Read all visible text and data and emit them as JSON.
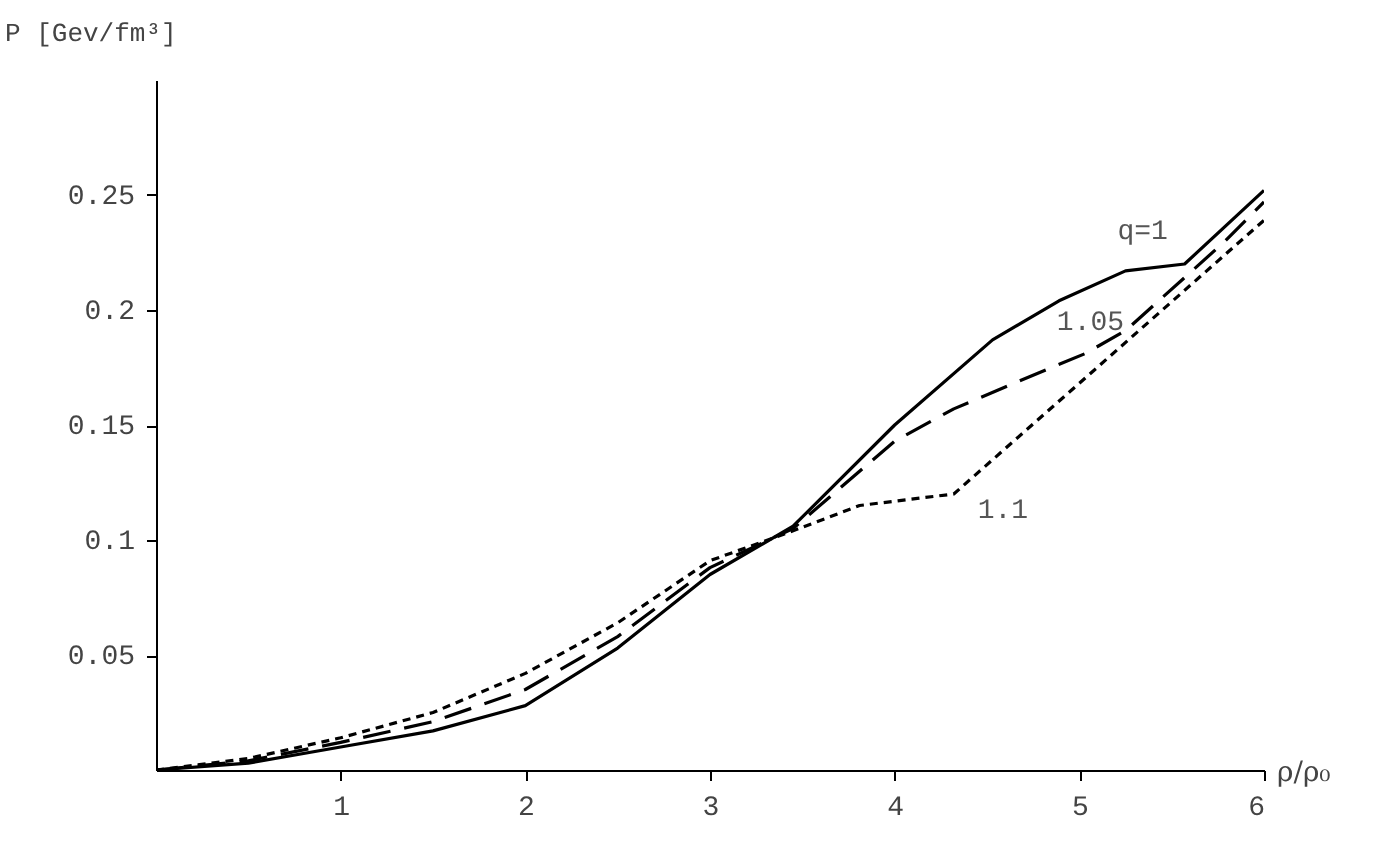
{
  "chart_data": {
    "type": "line",
    "xlabel": "ρ/ρ₀",
    "ylabel": "P [Gev/fm³]",
    "xlim": [
      0,
      6
    ],
    "ylim": [
      0,
      0.3
    ],
    "xticks": [
      1,
      2,
      3,
      4,
      5,
      6
    ],
    "yticks": [
      0.05,
      0.1,
      0.15,
      0.2,
      0.25
    ],
    "grid": false,
    "legend": false,
    "series": [
      {
        "name": "q=1",
        "color": "#000000",
        "line_style": "solid",
        "x": [
          0,
          0.5,
          1,
          1.5,
          2,
          2.5,
          3,
          3.45,
          4,
          4.53,
          4.89,
          5.25,
          5.57,
          6
        ],
        "values": [
          0,
          0.003,
          0.01,
          0.017,
          0.028,
          0.053,
          0.085,
          0.106,
          0.15,
          0.187,
          0.204,
          0.217,
          0.22,
          0.252
        ]
      },
      {
        "name": "1.05",
        "color": "#000000",
        "line_style": "dashed",
        "x": [
          0,
          0.5,
          1,
          1.5,
          2,
          2.5,
          3,
          3.45,
          4,
          4.32,
          4.73,
          5.03,
          5.25,
          5.79,
          6
        ],
        "values": [
          0,
          0.004,
          0.012,
          0.021,
          0.035,
          0.058,
          0.088,
          0.105,
          0.143,
          0.157,
          0.171,
          0.181,
          0.191,
          0.23,
          0.247
        ]
      },
      {
        "name": "1.1",
        "color": "#000000",
        "line_style": "dotted",
        "x": [
          0,
          0.5,
          1,
          1.5,
          2,
          2.5,
          3,
          3.45,
          3.81,
          4.32,
          6
        ],
        "values": [
          0,
          0.005,
          0.014,
          0.025,
          0.042,
          0.064,
          0.091,
          0.104,
          0.115,
          0.12,
          0.239
        ]
      }
    ]
  }
}
